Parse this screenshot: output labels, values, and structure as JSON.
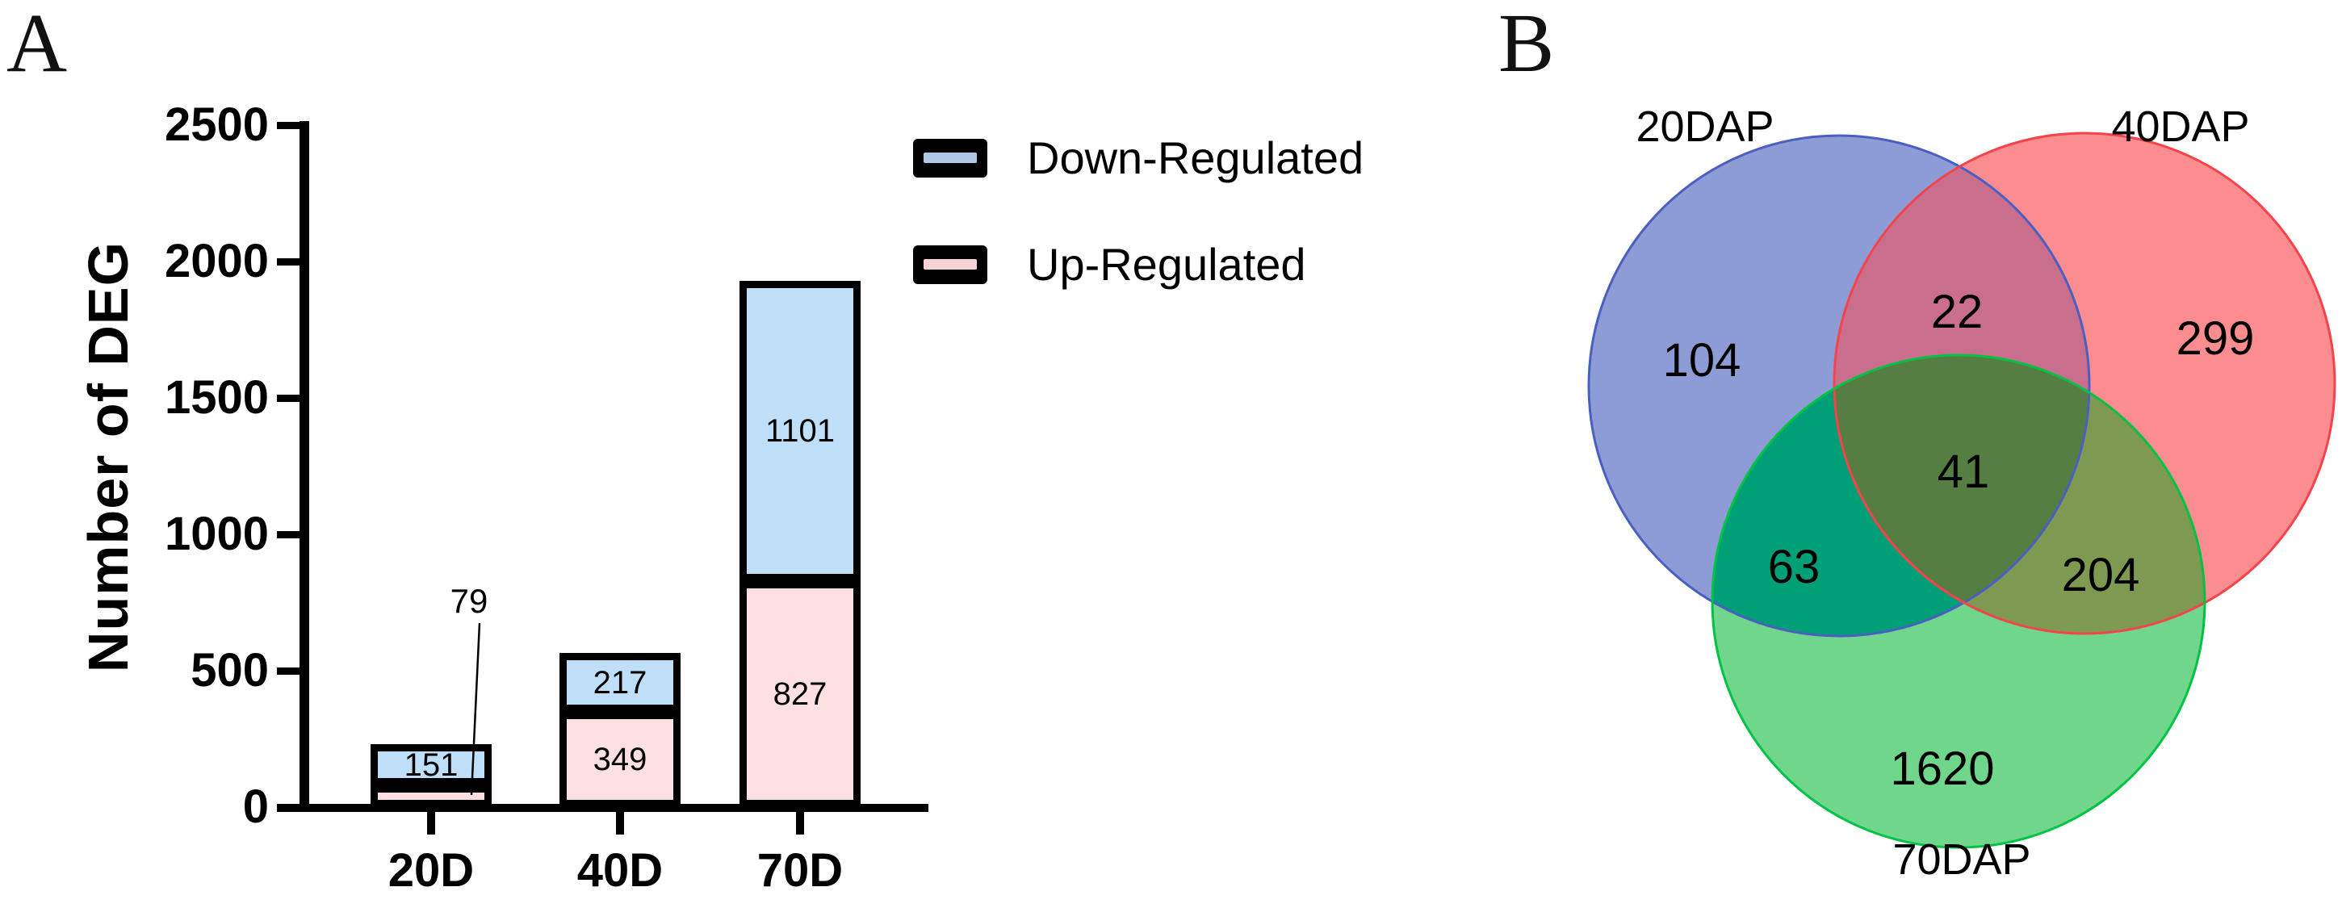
{
  "figure": {
    "background": "#ffffff"
  },
  "panel_a": {
    "label": "A",
    "legend": {
      "items": [
        {
          "label": "Down-Regulated",
          "swatch_color": "#afc9e5"
        },
        {
          "label": "Up-Regulated",
          "swatch_color": "#f8d2d6"
        }
      ]
    }
  },
  "panel_b": {
    "label": "B"
  },
  "chart_data": [
    {
      "type": "bar",
      "stacked": true,
      "title": "",
      "xlabel": "",
      "ylabel": "Number of DEG",
      "categories": [
        "20D",
        "40D",
        "70D"
      ],
      "series": [
        {
          "name": "Up-Regulated",
          "color": "#ffe0e2",
          "border_color": "#000000",
          "values": [
            79,
            349,
            827
          ]
        },
        {
          "name": "Down-Regulated",
          "color": "#bfdef7",
          "border_color": "#000000",
          "values": [
            151,
            217,
            1101
          ]
        }
      ],
      "ylim": [
        0,
        2500
      ],
      "yticks": [
        0,
        500,
        1000,
        1500,
        2000,
        2500
      ],
      "grid": false,
      "legend_position": "top-right",
      "value_labels": "inside segments",
      "callout": {
        "category": "20D",
        "series": "Up-Regulated",
        "note": "value shown above bar with leader line"
      }
    },
    {
      "type": "venn",
      "sets": [
        {
          "name": "20DAP",
          "fill": "#8e9cd6",
          "stroke": "#4a5fc1"
        },
        {
          "name": "40DAP",
          "fill": "#fb8c90",
          "stroke": "#f4434b"
        },
        {
          "name": "70DAP",
          "fill": "#6fd68c",
          "stroke": "#00c245"
        }
      ],
      "overlap_colors": {
        "20DAP_40DAP": "#c96f8d",
        "20DAP_70DAP": "#009f78",
        "40DAP_70DAP": "#7e9a51",
        "20DAP_40DAP_70DAP": "#567d42"
      },
      "regions": {
        "20DAP_only": 104,
        "40DAP_only": 299,
        "70DAP_only": 1620,
        "20DAP_40DAP": 22,
        "20DAP_70DAP": 63,
        "40DAP_70DAP": 204,
        "20DAP_40DAP_70DAP": 41
      }
    }
  ]
}
